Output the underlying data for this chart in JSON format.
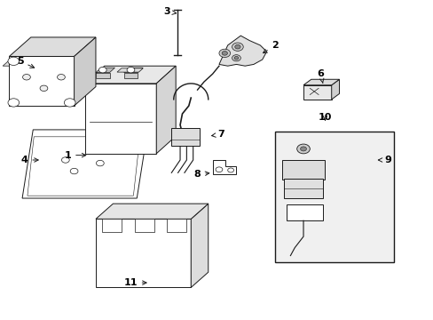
{
  "bg_color": "#ffffff",
  "line_color": "#1a1a1a",
  "label_color": "#000000",
  "figsize": [
    4.89,
    3.6
  ],
  "dpi": 100,
  "labels": {
    "1": [
      0.155,
      0.515,
      0.205,
      0.515
    ],
    "2": [
      0.635,
      0.86,
      0.6,
      0.83
    ],
    "3": [
      0.385,
      0.965,
      0.408,
      0.96
    ],
    "4": [
      0.055,
      0.5,
      0.095,
      0.5
    ],
    "5": [
      0.045,
      0.81,
      0.085,
      0.785
    ],
    "6": [
      0.74,
      0.77,
      0.745,
      0.74
    ],
    "7": [
      0.51,
      0.58,
      0.48,
      0.575
    ],
    "8": [
      0.455,
      0.455,
      0.49,
      0.46
    ],
    "9": [
      0.895,
      0.5,
      0.865,
      0.5
    ],
    "10": [
      0.75,
      0.635,
      0.75,
      0.615
    ],
    "11": [
      0.3,
      0.115,
      0.345,
      0.115
    ]
  }
}
